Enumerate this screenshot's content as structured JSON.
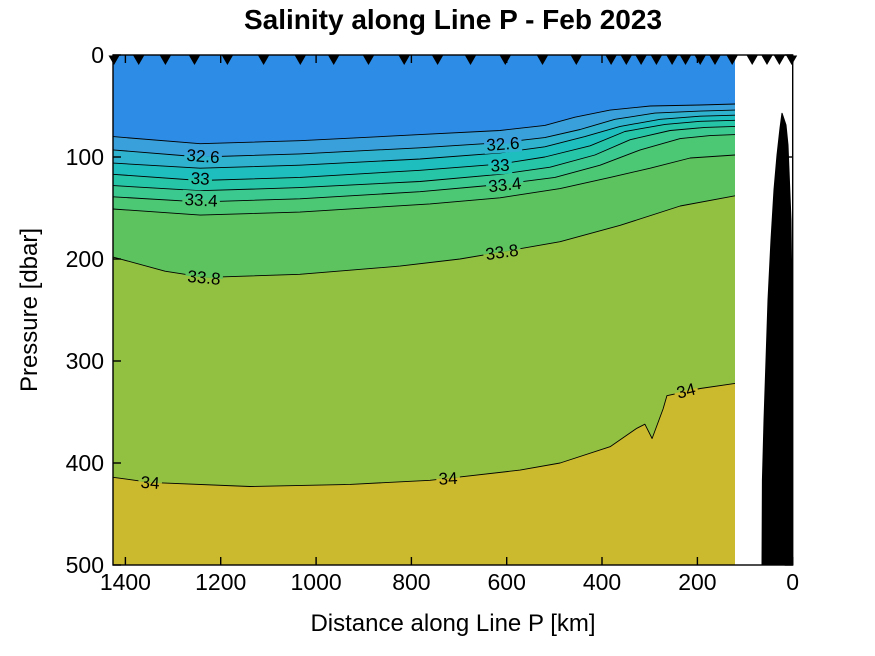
{
  "figure": {
    "background": "#FFFFFF",
    "title": "Salinity along Line P - Feb 2023"
  },
  "axes": {
    "xlabel": "Distance along Line P [km]",
    "ylabel": "Pressure [dbar]",
    "x_ticks": [
      1400,
      1200,
      1000,
      800,
      600,
      400,
      200,
      0
    ],
    "y_ticks": [
      0,
      100,
      200,
      300,
      400,
      500
    ],
    "x_range_km": [
      1426,
      0
    ],
    "x_reversed": true,
    "y_range_dbar": [
      0,
      500
    ],
    "y_increases_downward": true,
    "box_on": true,
    "tick_dir": "in",
    "axis_color": "#000000"
  },
  "chart_data": {
    "type": "heatmap",
    "subtype": "filled-contour-section",
    "title": "Salinity along Line P - Feb 2023",
    "xlabel": "Distance along Line P [km]",
    "ylabel": "Pressure [dbar]",
    "levels": [
      32.4,
      32.6,
      32.8,
      33,
      33.2,
      33.4,
      33.6,
      33.8,
      34
    ],
    "band_colors": [
      "#2D8DE6",
      "#3AA0DB",
      "#2EB2CE",
      "#1EBEBF",
      "#27C5A8",
      "#3CC98F",
      "#4CC774",
      "#5CC35E",
      "#92C142",
      "#CBB92E"
    ],
    "contour_line_color": "#000000",
    "data_extent_km": [
      1426,
      121
    ],
    "station_marker": "filled-down-triangle",
    "station_marker_color": "#000000",
    "stations_km": [
      1424,
      1372,
      1316,
      1255,
      1186,
      1110,
      1033,
      963,
      890,
      815,
      745,
      676,
      603,
      525,
      454,
      381,
      349,
      318,
      286,
      253,
      225,
      194,
      163,
      127,
      85,
      54,
      28,
      2
    ],
    "contours": [
      {
        "level": 32.4,
        "points_km_dbar": [
          [
            1426,
            80
          ],
          [
            1243,
            87
          ],
          [
            1034,
            84
          ],
          [
            782,
            78
          ],
          [
            614,
            74
          ],
          [
            520,
            69
          ],
          [
            457,
            61
          ],
          [
            383,
            54
          ],
          [
            299,
            50
          ],
          [
            194,
            49
          ],
          [
            121,
            48
          ]
        ]
      },
      {
        "level": 32.6,
        "points_km_dbar": [
          [
            1426,
            93
          ],
          [
            1243,
            100
          ],
          [
            1034,
            97
          ],
          [
            782,
            91
          ],
          [
            614,
            86
          ],
          [
            520,
            81
          ],
          [
            446,
            73
          ],
          [
            373,
            63
          ],
          [
            289,
            57
          ],
          [
            194,
            55
          ],
          [
            121,
            54
          ]
        ]
      },
      {
        "level": 32.8,
        "points_km_dbar": [
          [
            1426,
            106
          ],
          [
            1243,
            111
          ],
          [
            1034,
            108
          ],
          [
            782,
            102
          ],
          [
            614,
            96
          ],
          [
            520,
            90
          ],
          [
            436,
            80
          ],
          [
            362,
            70
          ],
          [
            278,
            63
          ],
          [
            194,
            60
          ],
          [
            121,
            59
          ]
        ]
      },
      {
        "level": 33,
        "points_km_dbar": [
          [
            1426,
            117
          ],
          [
            1243,
            123
          ],
          [
            1034,
            120
          ],
          [
            782,
            113
          ],
          [
            614,
            107
          ],
          [
            520,
            100
          ],
          [
            425,
            89
          ],
          [
            352,
            75
          ],
          [
            268,
            68
          ],
          [
            194,
            65
          ],
          [
            121,
            64
          ]
        ]
      },
      {
        "level": 33.2,
        "points_km_dbar": [
          [
            1426,
            128
          ],
          [
            1243,
            133
          ],
          [
            1034,
            130
          ],
          [
            782,
            124
          ],
          [
            614,
            117
          ],
          [
            509,
            110
          ],
          [
            415,
            98
          ],
          [
            341,
            83
          ],
          [
            257,
            74
          ],
          [
            184,
            71
          ],
          [
            121,
            70
          ]
        ]
      },
      {
        "level": 33.4,
        "points_km_dbar": [
          [
            1426,
            139
          ],
          [
            1243,
            144
          ],
          [
            1034,
            141
          ],
          [
            782,
            134
          ],
          [
            614,
            127
          ],
          [
            499,
            120
          ],
          [
            404,
            108
          ],
          [
            320,
            93
          ],
          [
            236,
            82
          ],
          [
            173,
            79
          ],
          [
            121,
            78
          ]
        ]
      },
      {
        "level": 33.6,
        "points_km_dbar": [
          [
            1426,
            151
          ],
          [
            1243,
            157
          ],
          [
            1034,
            154
          ],
          [
            761,
            146
          ],
          [
            614,
            140
          ],
          [
            488,
            131
          ],
          [
            383,
            120
          ],
          [
            299,
            111
          ],
          [
            215,
            101
          ],
          [
            121,
            98
          ]
        ]
      },
      {
        "level": 33.8,
        "points_km_dbar": [
          [
            1426,
            198
          ],
          [
            1317,
            212
          ],
          [
            1233,
            218
          ],
          [
            1034,
            215
          ],
          [
            824,
            207
          ],
          [
            698,
            200
          ],
          [
            610,
            193
          ],
          [
            488,
            183
          ],
          [
            362,
            167
          ],
          [
            236,
            148
          ],
          [
            121,
            138
          ]
        ]
      },
      {
        "level": 34,
        "points_km_dbar": [
          [
            1426,
            414
          ],
          [
            1348,
            419
          ],
          [
            1139,
            423
          ],
          [
            929,
            421
          ],
          [
            761,
            417
          ],
          [
            723,
            415
          ],
          [
            572,
            407
          ],
          [
            488,
            400
          ],
          [
            383,
            384
          ],
          [
            327,
            366
          ],
          [
            310,
            362
          ],
          [
            295,
            376
          ],
          [
            272,
            347
          ],
          [
            264,
            334
          ],
          [
            194,
            327
          ],
          [
            121,
            322
          ]
        ]
      }
    ],
    "contour_labels": [
      {
        "text": "32.6",
        "level": 32.6,
        "km": 1237,
        "dbar": 99,
        "rot": 4
      },
      {
        "text": "32.6",
        "level": 32.6,
        "km": 608,
        "dbar": 87,
        "rot": -4
      },
      {
        "text": "33",
        "level": 33,
        "km": 1243,
        "dbar": 121,
        "rot": 3
      },
      {
        "text": "33",
        "level": 33,
        "km": 614,
        "dbar": 108,
        "rot": -3
      },
      {
        "text": "33.4",
        "level": 33.4,
        "km": 1241,
        "dbar": 142,
        "rot": 3
      },
      {
        "text": "33.4",
        "level": 33.4,
        "km": 604,
        "dbar": 127,
        "rot": -6
      },
      {
        "text": "33.8",
        "level": 33.8,
        "km": 1235,
        "dbar": 218,
        "rot": 5
      },
      {
        "text": "33.8",
        "level": 33.8,
        "km": 610,
        "dbar": 193,
        "rot": -8
      },
      {
        "text": "34",
        "level": 34,
        "km": 1348,
        "dbar": 419,
        "rot": 4
      },
      {
        "text": "34",
        "level": 34,
        "km": 723,
        "dbar": 415,
        "rot": -3
      },
      {
        "text": "34",
        "level": 34,
        "km": 224,
        "dbar": 329,
        "rot": -14
      }
    ],
    "bathymetry_km_dbar": [
      [
        64.4,
        500
      ],
      [
        63.5,
        417
      ],
      [
        60.2,
        358
      ],
      [
        56,
        299
      ],
      [
        51.8,
        240
      ],
      [
        45.5,
        181
      ],
      [
        39.2,
        132
      ],
      [
        32.9,
        98
      ],
      [
        26.6,
        71.6
      ],
      [
        22.4,
        56.9
      ],
      [
        14,
        68.6
      ],
      [
        9.9,
        88.2
      ],
      [
        7.8,
        112.7
      ],
      [
        3.6,
        161.8
      ],
      [
        1.5,
        240
      ],
      [
        1.5,
        500
      ]
    ],
    "bathymetry_color": "#000000"
  }
}
